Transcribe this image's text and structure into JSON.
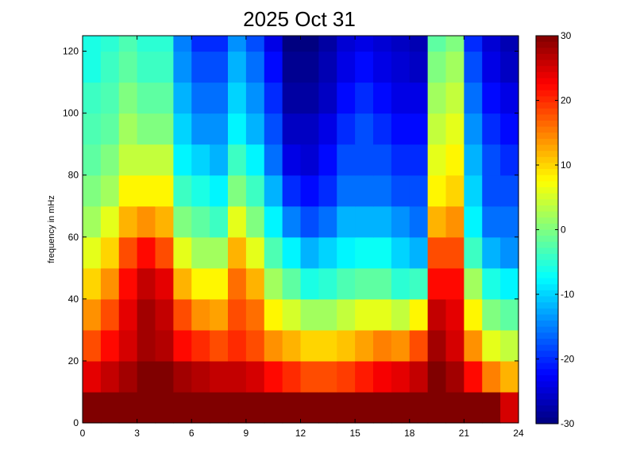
{
  "chart_data": {
    "type": "heatmap",
    "title": "2025 Oct 31",
    "xlabel": "",
    "ylabel": "frequency in mHz",
    "xlim": [
      0,
      24
    ],
    "ylim": [
      0,
      125
    ],
    "xticks": [
      0,
      3,
      6,
      9,
      12,
      15,
      18,
      21,
      24
    ],
    "yticks": [
      0,
      20,
      40,
      60,
      80,
      100,
      120
    ],
    "colormap": "jet",
    "colorbar": {
      "clim": [
        -30,
        30
      ],
      "ticks": [
        -30,
        -20,
        -10,
        0,
        10,
        20,
        30
      ]
    },
    "grid": false,
    "x_bins": 24,
    "y_bins": 13,
    "x_bin_centers": [
      0.5,
      1.5,
      2.5,
      3.5,
      4.5,
      5.5,
      6.5,
      7.5,
      8.5,
      9.5,
      10.5,
      11.5,
      12.5,
      13.5,
      14.5,
      15.5,
      16.5,
      17.5,
      18.5,
      19.5,
      20.5,
      21.5,
      22.5,
      23.5
    ],
    "y_bin_centers": [
      5,
      15,
      25,
      35,
      45,
      55,
      65,
      75,
      85,
      95,
      105,
      115,
      125
    ],
    "values": [
      [
        30,
        30,
        30,
        30,
        30,
        30,
        30,
        30,
        30,
        30,
        30,
        30,
        30,
        30,
        30,
        30,
        30,
        30,
        30,
        30,
        30,
        30,
        30,
        25
      ],
      [
        24,
        26,
        28,
        30,
        30,
        28,
        27,
        26,
        26,
        25,
        22,
        20,
        18,
        18,
        19,
        21,
        23,
        24,
        26,
        30,
        28,
        22,
        15,
        12
      ],
      [
        18,
        22,
        25,
        28,
        27,
        22,
        20,
        18,
        20,
        18,
        14,
        12,
        10,
        10,
        11,
        13,
        15,
        14,
        18,
        28,
        25,
        14,
        6,
        4
      ],
      [
        14,
        18,
        24,
        28,
        26,
        18,
        14,
        13,
        18,
        16,
        8,
        5,
        2,
        2,
        4,
        6,
        6,
        4,
        8,
        26,
        24,
        8,
        0,
        -2
      ],
      [
        10,
        14,
        22,
        26,
        24,
        12,
        8,
        8,
        16,
        12,
        2,
        -2,
        -6,
        -5,
        -3,
        -2,
        -2,
        -5,
        -4,
        22,
        22,
        2,
        -6,
        -8
      ],
      [
        6,
        10,
        18,
        22,
        18,
        6,
        2,
        2,
        12,
        6,
        -3,
        -8,
        -12,
        -10,
        -8,
        -7,
        -7,
        -10,
        -12,
        18,
        18,
        -4,
        -12,
        -14
      ],
      [
        2,
        6,
        12,
        14,
        12,
        0,
        -2,
        -4,
        6,
        0,
        -8,
        -15,
        -18,
        -16,
        -12,
        -12,
        -12,
        -14,
        -16,
        12,
        14,
        -8,
        -16,
        -16
      ],
      [
        0,
        2,
        8,
        8,
        8,
        -4,
        -6,
        -8,
        0,
        -4,
        -12,
        -20,
        -22,
        -20,
        -16,
        -16,
        -16,
        -18,
        -18,
        8,
        10,
        -10,
        -18,
        -18
      ],
      [
        -2,
        0,
        4,
        4,
        4,
        -8,
        -10,
        -12,
        -4,
        -8,
        -16,
        -24,
        -25,
        -22,
        -18,
        -18,
        -18,
        -20,
        -20,
        6,
        8,
        -12,
        -18,
        -20
      ],
      [
        -3,
        -2,
        2,
        0,
        0,
        -10,
        -14,
        -14,
        -8,
        -12,
        -18,
        -26,
        -26,
        -24,
        -20,
        -18,
        -20,
        -22,
        -22,
        4,
        6,
        -14,
        -20,
        -22
      ],
      [
        -4,
        -3,
        0,
        -2,
        -2,
        -12,
        -16,
        -16,
        -10,
        -14,
        -20,
        -28,
        -28,
        -26,
        -22,
        -20,
        -22,
        -24,
        -24,
        2,
        4,
        -16,
        -22,
        -24
      ],
      [
        -6,
        -4,
        -2,
        -4,
        -4,
        -14,
        -18,
        -18,
        -12,
        -16,
        -22,
        -29,
        -29,
        -27,
        -24,
        -22,
        -24,
        -25,
        -26,
        0,
        2,
        -18,
        -24,
        -26
      ],
      [
        -6,
        -5,
        -3,
        -5,
        -5,
        -15,
        -20,
        -20,
        -14,
        -18,
        -24,
        -30,
        -30,
        -28,
        -25,
        -24,
        -25,
        -26,
        -27,
        -2,
        0,
        -20,
        -25,
        -27
      ]
    ]
  }
}
